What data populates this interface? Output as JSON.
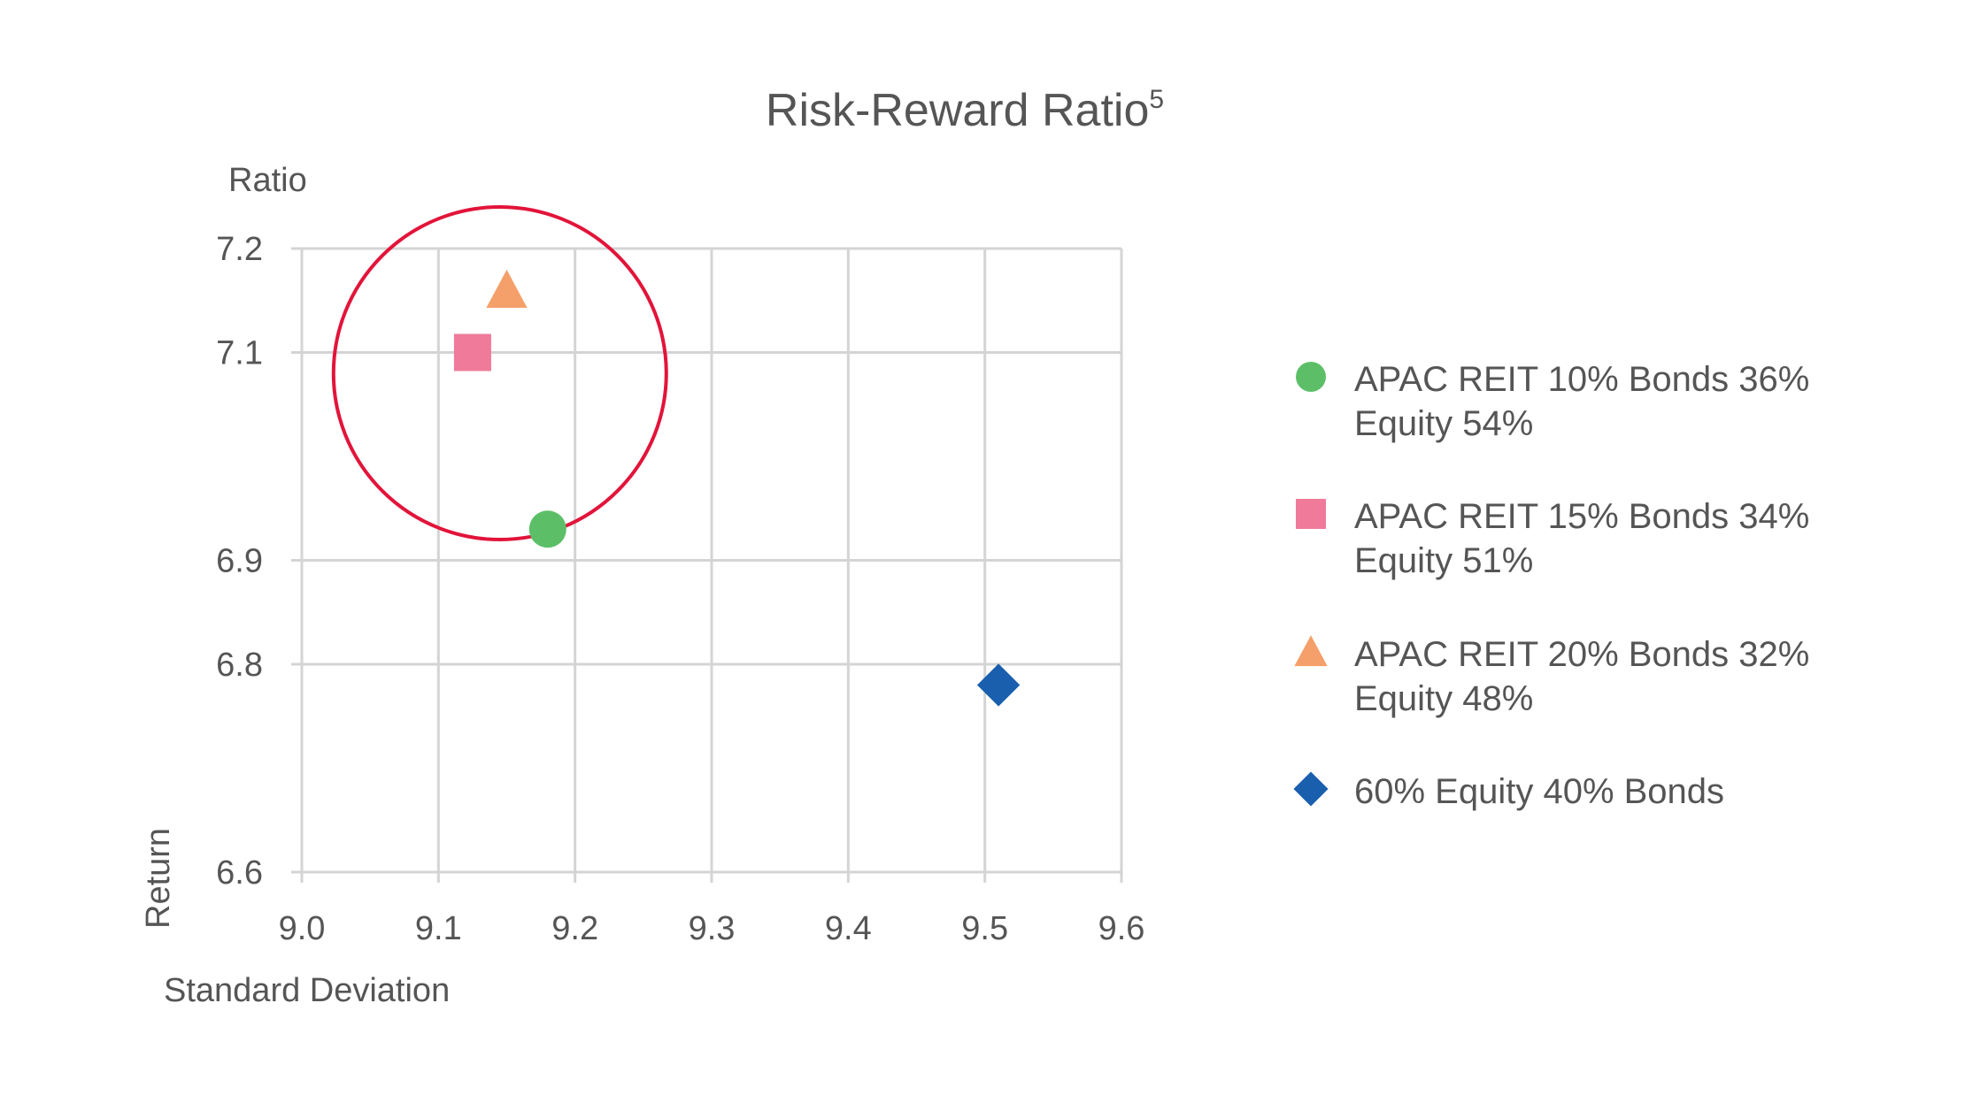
{
  "chart_data": {
    "type": "scatter",
    "title": "Risk-Reward Ratio",
    "title_superscript": "5",
    "corner_label": "Ratio",
    "ylabel": "Return",
    "xlabel": "Standard Deviation",
    "xlim": [
      9.0,
      9.6
    ],
    "ylim": [
      6.6,
      7.2
    ],
    "x_ticks": [
      "9.0",
      "9.1",
      "9.2",
      "9.3",
      "9.4",
      "9.5",
      "9.6"
    ],
    "y_ticks": [
      "6.6",
      "6.8",
      "6.9",
      "7.1",
      "7.2"
    ],
    "y_tick_positions": [
      6.6,
      6.8,
      6.9,
      7.1,
      7.2
    ],
    "grid": true,
    "legend_position": "right",
    "series": [
      {
        "name": "APAC REIT 10% Bonds 36% Equity 54%",
        "legend_lines": [
          "APAC REIT 10% Bonds 36%",
          "Equity 54%"
        ],
        "marker": "circle",
        "color": "#5cbf68",
        "x": 9.18,
        "y": 6.93
      },
      {
        "name": "APAC REIT 15% Bonds 34% Equity 51%",
        "legend_lines": [
          "APAC REIT 15% Bonds 34%",
          "Equity 51%"
        ],
        "marker": "square",
        "color": "#ef7a9a",
        "x": 9.125,
        "y": 7.1
      },
      {
        "name": "APAC REIT 20% Bonds 32% Equity 48%",
        "legend_lines": [
          "APAC REIT 20% Bonds 32%",
          "Equity 48%"
        ],
        "marker": "triangle",
        "color": "#f5a06a",
        "x": 9.15,
        "y": 7.16
      },
      {
        "name": "60% Equity 40% Bonds",
        "legend_lines": [
          "60% Equity 40% Bonds"
        ],
        "marker": "diamond",
        "color": "#1a5fae",
        "x": 9.51,
        "y": 6.78
      }
    ],
    "annotation_circle": {
      "cx": 9.145,
      "cy": 7.08,
      "color": "#e2143a"
    }
  }
}
